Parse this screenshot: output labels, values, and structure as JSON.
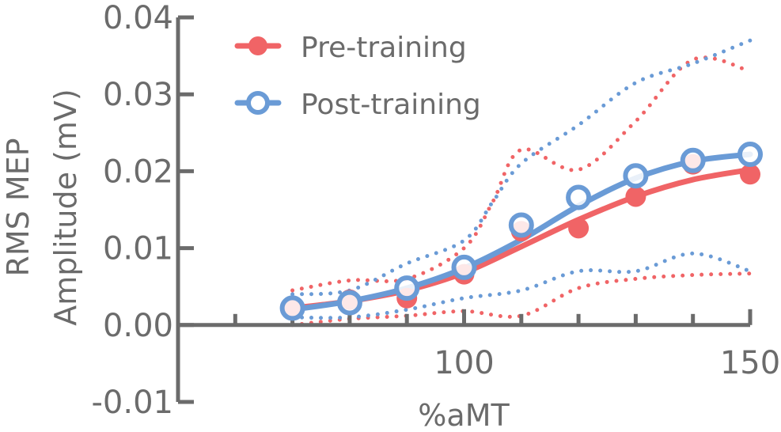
{
  "chart_data": {
    "type": "line",
    "title": "",
    "xlabel": "%aMT",
    "ylabel_lines": [
      "RMS MEP",
      "Amplitude (mV)"
    ],
    "xlim": [
      50,
      150
    ],
    "ylim": [
      -0.01,
      0.04
    ],
    "xticks": [
      100,
      150
    ],
    "xtick_labels": [
      "100",
      "150"
    ],
    "yticks": [
      -0.01,
      0.0,
      0.01,
      0.02,
      0.03,
      0.04
    ],
    "ytick_labels": [
      "-0.01",
      "0.00",
      "0.01",
      "0.02",
      "0.03",
      "0.04"
    ],
    "legend_position": "top-left",
    "x": [
      70,
      80,
      90,
      100,
      110,
      120,
      130,
      140,
      150
    ],
    "series": [
      {
        "name": "Pre-training",
        "color": "#f06466",
        "marker": "filled-circle",
        "values": [
          0.0022,
          0.0033,
          0.0035,
          0.0066,
          0.0122,
          0.0126,
          0.0167,
          0.0209,
          0.0196
        ],
        "fit": [
          [
            70,
            0.0022
          ],
          [
            80,
            0.0031
          ],
          [
            90,
            0.0045
          ],
          [
            100,
            0.0068
          ],
          [
            110,
            0.0102
          ],
          [
            120,
            0.0137
          ],
          [
            130,
            0.0167
          ],
          [
            140,
            0.0189
          ],
          [
            150,
            0.0202
          ]
        ],
        "upper": [
          [
            70,
            0.0045
          ],
          [
            80,
            0.0058
          ],
          [
            90,
            0.006
          ],
          [
            100,
            0.01
          ],
          [
            105,
            0.016
          ],
          [
            110,
            0.0228
          ],
          [
            120,
            0.0202
          ],
          [
            130,
            0.0265
          ],
          [
            140,
            0.0345
          ],
          [
            150,
            0.033
          ]
        ],
        "lower": [
          [
            70,
            0.0
          ],
          [
            80,
            0.0008
          ],
          [
            90,
            0.0012
          ],
          [
            100,
            0.0018
          ],
          [
            110,
            0.0012
          ],
          [
            120,
            0.0048
          ],
          [
            130,
            0.006
          ],
          [
            140,
            0.0065
          ],
          [
            150,
            0.0067
          ]
        ]
      },
      {
        "name": "Post-training",
        "color": "#6a9bd6",
        "marker": "open-circle",
        "values": [
          0.0022,
          0.0029,
          0.0048,
          0.0075,
          0.013,
          0.0166,
          0.0194,
          0.0214,
          0.0222
        ],
        "fit": [
          [
            70,
            0.002
          ],
          [
            80,
            0.0031
          ],
          [
            90,
            0.0048
          ],
          [
            100,
            0.0074
          ],
          [
            110,
            0.0111
          ],
          [
            120,
            0.0155
          ],
          [
            130,
            0.0191
          ],
          [
            140,
            0.0213
          ],
          [
            150,
            0.0222
          ]
        ],
        "upper": [
          [
            70,
            0.004
          ],
          [
            80,
            0.0045
          ],
          [
            90,
            0.008
          ],
          [
            100,
            0.011
          ],
          [
            105,
            0.016
          ],
          [
            110,
            0.021
          ],
          [
            120,
            0.026
          ],
          [
            130,
            0.0315
          ],
          [
            140,
            0.034
          ],
          [
            150,
            0.037
          ]
        ],
        "lower": [
          [
            70,
            0.001
          ],
          [
            80,
            0.001
          ],
          [
            90,
            0.002
          ],
          [
            100,
            0.0035
          ],
          [
            110,
            0.0045
          ],
          [
            120,
            0.007
          ],
          [
            130,
            0.007
          ],
          [
            140,
            0.0093
          ],
          [
            150,
            0.007
          ]
        ]
      }
    ]
  }
}
